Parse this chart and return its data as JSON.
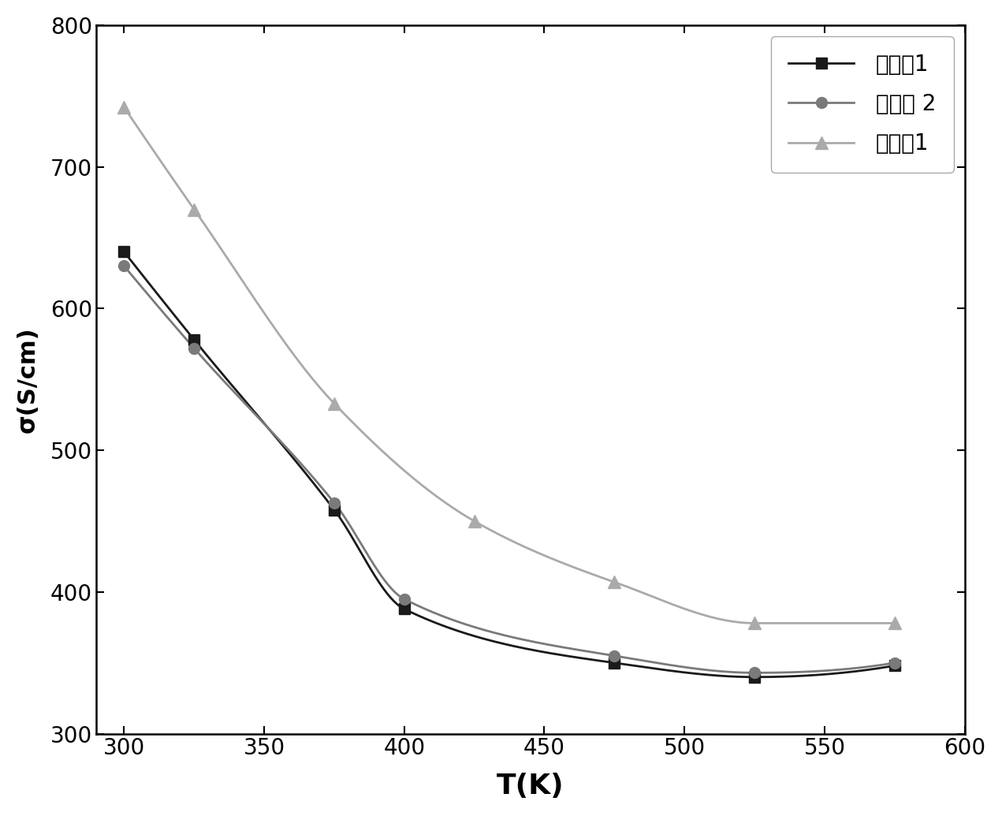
{
  "series": [
    {
      "label": "对比例1",
      "x": [
        300,
        325,
        375,
        400,
        475,
        525,
        575
      ],
      "y": [
        640,
        578,
        458,
        388,
        350,
        340,
        348
      ],
      "color": "#1a1a1a",
      "marker": "s",
      "markersize": 10,
      "linewidth": 2.0
    },
    {
      "label": "对比例 2",
      "x": [
        300,
        325,
        375,
        400,
        475,
        525,
        575
      ],
      "y": [
        630,
        572,
        463,
        395,
        355,
        343,
        350
      ],
      "color": "#7a7a7a",
      "marker": "o",
      "markersize": 10,
      "linewidth": 2.0
    },
    {
      "label": "实施例1",
      "x": [
        300,
        325,
        375,
        425,
        475,
        525,
        575
      ],
      "y": [
        742,
        670,
        533,
        450,
        407,
        378,
        378
      ],
      "color": "#aaaaaa",
      "marker": "^",
      "markersize": 11,
      "linewidth": 2.0
    }
  ],
  "xlabel": "T(K)",
  "ylabel": "σ(S/cm)",
  "xlim": [
    290,
    600
  ],
  "ylim": [
    300,
    800
  ],
  "xticks": [
    300,
    350,
    400,
    450,
    500,
    550,
    600
  ],
  "yticks": [
    300,
    400,
    500,
    600,
    700,
    800
  ],
  "xlabel_fontsize": 26,
  "ylabel_fontsize": 22,
  "tick_fontsize": 20,
  "legend_fontsize": 20,
  "legend_loc": "upper right",
  "figure_bg": "#ffffff",
  "axes_bg": "#ffffff",
  "spine_color": "#000000",
  "tick_color": "#000000"
}
